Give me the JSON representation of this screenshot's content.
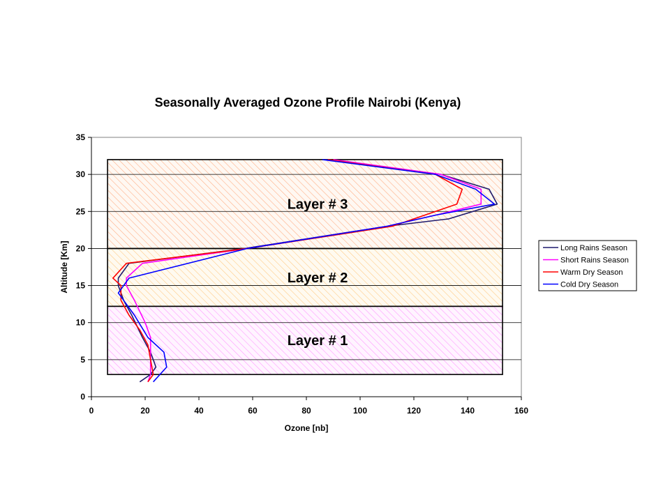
{
  "chart_data": {
    "type": "line",
    "title": "Seasonally Averaged Ozone Profile Nairobi (Kenya)",
    "xlabel": "Ozone [nb]",
    "ylabel": "Altitude [Km]",
    "xlim": [
      0,
      160
    ],
    "ylim": [
      0,
      35
    ],
    "xticks": [
      "0",
      "20",
      "40",
      "60",
      "80",
      "100",
      "120",
      "140",
      "160"
    ],
    "yticks": [
      "0",
      "5",
      "10",
      "15",
      "20",
      "25",
      "30",
      "35"
    ],
    "grid": "horizontal",
    "legend_position": "right",
    "layers": [
      {
        "label": "Layer # 1",
        "y_from": 3,
        "y_to": 12.2,
        "x_from": 6,
        "x_to": 153,
        "color": "#ff99ff"
      },
      {
        "label": "Layer # 2",
        "y_from": 12.2,
        "y_to": 20,
        "x_from": 6,
        "x_to": 153,
        "color": "#ffcc66"
      },
      {
        "label": "Layer # 3",
        "y_from": 20,
        "y_to": 32,
        "x_from": 6,
        "x_to": 153,
        "color": "#ff9966"
      }
    ],
    "series": [
      {
        "name": "Long Rains Season",
        "color": "#1f1a6e",
        "points": [
          [
            18,
            2
          ],
          [
            22,
            3
          ],
          [
            24,
            4
          ],
          [
            22,
            6
          ],
          [
            19,
            8
          ],
          [
            15,
            11
          ],
          [
            12,
            13
          ],
          [
            10,
            15
          ],
          [
            10,
            16
          ],
          [
            14,
            18
          ],
          [
            57,
            20
          ],
          [
            110,
            23
          ],
          [
            133,
            24
          ],
          [
            151,
            26
          ],
          [
            148,
            28
          ],
          [
            130,
            30
          ],
          [
            87,
            32
          ]
        ]
      },
      {
        "name": "Short Rains Season",
        "color": "#ff00ff",
        "points": [
          [
            21,
            2
          ],
          [
            22,
            3
          ],
          [
            22,
            5
          ],
          [
            22,
            8
          ],
          [
            20,
            10
          ],
          [
            16,
            13
          ],
          [
            13,
            15
          ],
          [
            13,
            16
          ],
          [
            19,
            18
          ],
          [
            58,
            20
          ],
          [
            110,
            23
          ],
          [
            128,
            24.5
          ],
          [
            145,
            26
          ],
          [
            145,
            28
          ],
          [
            130,
            30
          ],
          [
            90,
            32
          ]
        ]
      },
      {
        "name": "Warm Dry Season",
        "color": "#ff0000",
        "points": [
          [
            21,
            2
          ],
          [
            23,
            3
          ],
          [
            22,
            5
          ],
          [
            21,
            7
          ],
          [
            18,
            9
          ],
          [
            14,
            11
          ],
          [
            11,
            13
          ],
          [
            11,
            15
          ],
          [
            8,
            16
          ],
          [
            13,
            18
          ],
          [
            58,
            20
          ],
          [
            112,
            23
          ],
          [
            136,
            26
          ],
          [
            138,
            28
          ],
          [
            128,
            30
          ],
          [
            88,
            32
          ]
        ]
      },
      {
        "name": "Cold Dry Season",
        "color": "#0000ff",
        "points": [
          [
            23,
            2
          ],
          [
            28,
            4
          ],
          [
            27,
            6
          ],
          [
            21,
            8
          ],
          [
            16,
            11
          ],
          [
            12,
            13
          ],
          [
            10,
            14
          ],
          [
            14,
            16
          ],
          [
            58,
            20
          ],
          [
            110,
            23
          ],
          [
            128,
            24.5
          ],
          [
            150,
            26
          ],
          [
            143,
            28
          ],
          [
            128,
            30
          ],
          [
            86,
            32
          ]
        ]
      }
    ]
  }
}
